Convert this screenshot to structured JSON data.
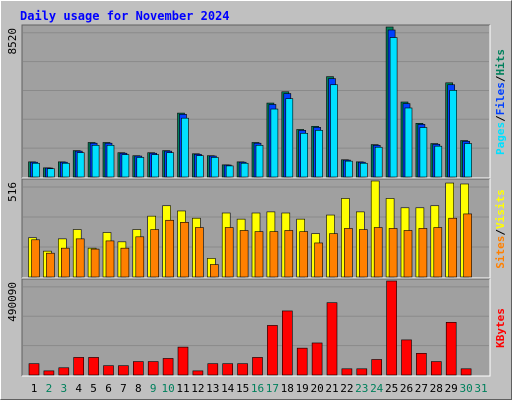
{
  "title": "Daily usage for November 2024",
  "legend_separator": "/",
  "chart_data": [
    {
      "type": "bar",
      "ylim": [
        0,
        8520
      ],
      "yticks": [
        8520
      ],
      "series": [
        {
          "name": "Hits",
          "color": "#00805c",
          "values": [
            860,
            520,
            860,
            1500,
            1960,
            1960,
            1380,
            1210,
            1380,
            1500,
            3630,
            1320,
            1210,
            690,
            860,
            1960,
            4200,
            4840,
            2700,
            2880,
            5700,
            980,
            860,
            1840,
            8520,
            4260,
            3050,
            1900,
            5350,
            2070,
            null
          ]
        },
        {
          "name": "Files",
          "color": "#0040ff",
          "values": [
            840,
            510,
            840,
            1470,
            1920,
            1920,
            1350,
            1190,
            1350,
            1470,
            3560,
            1290,
            1190,
            680,
            840,
            1920,
            4120,
            4740,
            2650,
            2820,
            5590,
            960,
            840,
            1800,
            8350,
            4170,
            2990,
            1860,
            5240,
            2030,
            null
          ]
        },
        {
          "name": "Pages",
          "color": "#00e0ff",
          "values": [
            780,
            470,
            780,
            1380,
            1800,
            1800,
            1270,
            1110,
            1270,
            1380,
            3340,
            1210,
            1110,
            630,
            780,
            1800,
            3860,
            4450,
            2480,
            2650,
            5240,
            900,
            780,
            1690,
            7920,
            3920,
            2810,
            1750,
            4920,
            1900,
            null
          ]
        }
      ]
    },
    {
      "type": "bar",
      "ylim": [
        0,
        516
      ],
      "yticks": [
        516
      ],
      "series": [
        {
          "name": "Visits",
          "color": "#ffff00",
          "values": [
            211,
            139,
            205,
            255,
            155,
            239,
            189,
            255,
            327,
            383,
            355,
            316,
            100,
            344,
            311,
            344,
            350,
            344,
            311,
            233,
            333,
            422,
            350,
            516,
            422,
            372,
            372,
            383,
            505,
            500,
            null
          ]
        },
        {
          "name": "Sites",
          "color": "#ff8000",
          "values": [
            200,
            128,
            155,
            205,
            150,
            194,
            155,
            216,
            255,
            305,
            294,
            266,
            67,
            266,
            250,
            244,
            244,
            250,
            244,
            183,
            233,
            261,
            255,
            266,
            261,
            250,
            261,
            266,
            316,
            339,
            null
          ]
        }
      ]
    },
    {
      "type": "bar",
      "ylim": [
        0,
        490090
      ],
      "yticks": [
        490090
      ],
      "categories": [
        "1",
        "2",
        "3",
        "4",
        "5",
        "6",
        "7",
        "8",
        "9",
        "10",
        "11",
        "12",
        "13",
        "14",
        "15",
        "16",
        "17",
        "18",
        "19",
        "20",
        "21",
        "22",
        "23",
        "24",
        "25",
        "26",
        "27",
        "28",
        "29",
        "30",
        "31"
      ],
      "category_colors": [
        "#000000",
        "#00805c",
        "#00805c",
        "#000000",
        "#000000",
        "#000000",
        "#000000",
        "#000000",
        "#00805c",
        "#00805c",
        "#000000",
        "#000000",
        "#000000",
        "#000000",
        "#000000",
        "#00805c",
        "#00805c",
        "#000000",
        "#000000",
        "#000000",
        "#000000",
        "#000000",
        "#00805c",
        "#00805c",
        "#000000",
        "#000000",
        "#000000",
        "#000000",
        "#000000",
        "#00805c",
        "#00805c"
      ],
      "series": [
        {
          "name": "KBytes",
          "color": "#ff0000",
          "values": [
            59000,
            21500,
            37700,
            91600,
            91600,
            48500,
            48500,
            70000,
            70000,
            86200,
            145400,
            21500,
            59000,
            59000,
            59000,
            91600,
            258500,
            334000,
            140000,
            167000,
            377000,
            32300,
            32300,
            80800,
            490090,
            183000,
            113000,
            70000,
            274700,
            32300,
            null
          ]
        }
      ]
    }
  ]
}
